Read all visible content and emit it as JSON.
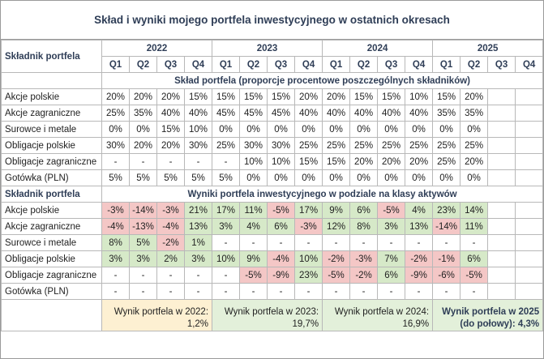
{
  "title": "Skład i wyniki mojego portfela inwestycyjnego w ostatnich okresach",
  "header": {
    "row_label": "Składnik portfela",
    "years": [
      "2022",
      "2023",
      "2024",
      "2025"
    ],
    "quarters": [
      "Q1",
      "Q2",
      "Q3",
      "Q4"
    ]
  },
  "composition": {
    "section_title": "Skład portfela (proporcje procentowe poszczególnych składników)",
    "rows": [
      {
        "label": "Akcje polskie",
        "values": [
          "20%",
          "20%",
          "20%",
          "15%",
          "15%",
          "15%",
          "15%",
          "20%",
          "20%",
          "15%",
          "15%",
          "10%",
          "15%",
          "20%",
          "",
          ""
        ]
      },
      {
        "label": "Akcje zagraniczne",
        "values": [
          "25%",
          "35%",
          "40%",
          "40%",
          "45%",
          "45%",
          "45%",
          "40%",
          "40%",
          "40%",
          "40%",
          "40%",
          "35%",
          "35%",
          "",
          ""
        ]
      },
      {
        "label": "Surowce i metale",
        "values": [
          "0%",
          "0%",
          "15%",
          "10%",
          "0%",
          "0%",
          "0%",
          "0%",
          "0%",
          "0%",
          "0%",
          "0%",
          "0%",
          "0%",
          "",
          ""
        ]
      },
      {
        "label": "Obligacje polskie",
        "values": [
          "30%",
          "20%",
          "20%",
          "30%",
          "25%",
          "30%",
          "30%",
          "25%",
          "25%",
          "25%",
          "25%",
          "25%",
          "25%",
          "25%",
          "",
          ""
        ]
      },
      {
        "label": "Obligacje zagraniczne",
        "values": [
          "-",
          "-",
          "-",
          "-",
          "-",
          "10%",
          "10%",
          "15%",
          "15%",
          "20%",
          "20%",
          "20%",
          "25%",
          "20%",
          "",
          ""
        ]
      },
      {
        "label": "Gotówka (PLN)",
        "values": [
          "5%",
          "5%",
          "5%",
          "5%",
          "5%",
          "0%",
          "0%",
          "0%",
          "0%",
          "0%",
          "0%",
          "0%",
          "0%",
          "0%",
          "",
          ""
        ]
      }
    ]
  },
  "results": {
    "row_label": "Składnik portfela",
    "section_title": "Wyniki portfela inwestycyjnego w podziale na klasy aktywów",
    "rows": [
      {
        "label": "Akcje polskie",
        "values": [
          "-3%",
          "-14%",
          "-3%",
          "21%",
          "17%",
          "11%",
          "-5%",
          "17%",
          "9%",
          "6%",
          "-5%",
          "4%",
          "23%",
          "14%",
          "",
          ""
        ]
      },
      {
        "label": "Akcje zagraniczne",
        "values": [
          "-4%",
          "-13%",
          "-4%",
          "13%",
          "3%",
          "4%",
          "6%",
          "-3%",
          "12%",
          "8%",
          "3%",
          "13%",
          "-14%",
          "11%",
          "",
          ""
        ]
      },
      {
        "label": "Surowce i metale",
        "values": [
          "8%",
          "5%",
          "-2%",
          "1%",
          "-",
          "-",
          "-",
          "-",
          "-",
          "-",
          "-",
          "-",
          "-",
          "-",
          "",
          ""
        ]
      },
      {
        "label": "Obligacje polskie",
        "values": [
          "3%",
          "3%",
          "2%",
          "3%",
          "10%",
          "9%",
          "-4%",
          "10%",
          "-2%",
          "-3%",
          "7%",
          "-2%",
          "-1%",
          "6%",
          "",
          ""
        ]
      },
      {
        "label": "Obligacje zagraniczne",
        "values": [
          "-",
          "-",
          "-",
          "-",
          "-",
          "-5%",
          "-9%",
          "23%",
          "-5%",
          "-2%",
          "6%",
          "-9%",
          "-6%",
          "-5%",
          "",
          ""
        ]
      },
      {
        "label": "Gotówka (PLN)",
        "values": [
          "-",
          "-",
          "-",
          "-",
          "-",
          "-",
          "-",
          "-",
          "-",
          "-",
          "-",
          "-",
          "-",
          "-",
          "",
          ""
        ]
      }
    ],
    "colors": {
      "negative": "#f4c7c6",
      "positive": "#d6e9c8"
    }
  },
  "summary": [
    {
      "line1": "Wynik portfela w 2022:",
      "line2": "1,2%"
    },
    {
      "line1": "Wynik portfela w 2023:",
      "line2": "19,7%"
    },
    {
      "line1": "Wynik portfela w 2024:",
      "line2": "16,9%"
    },
    {
      "line1": "Wynik portfela w 2025",
      "line2": "(do połowy): 4,3%"
    }
  ]
}
